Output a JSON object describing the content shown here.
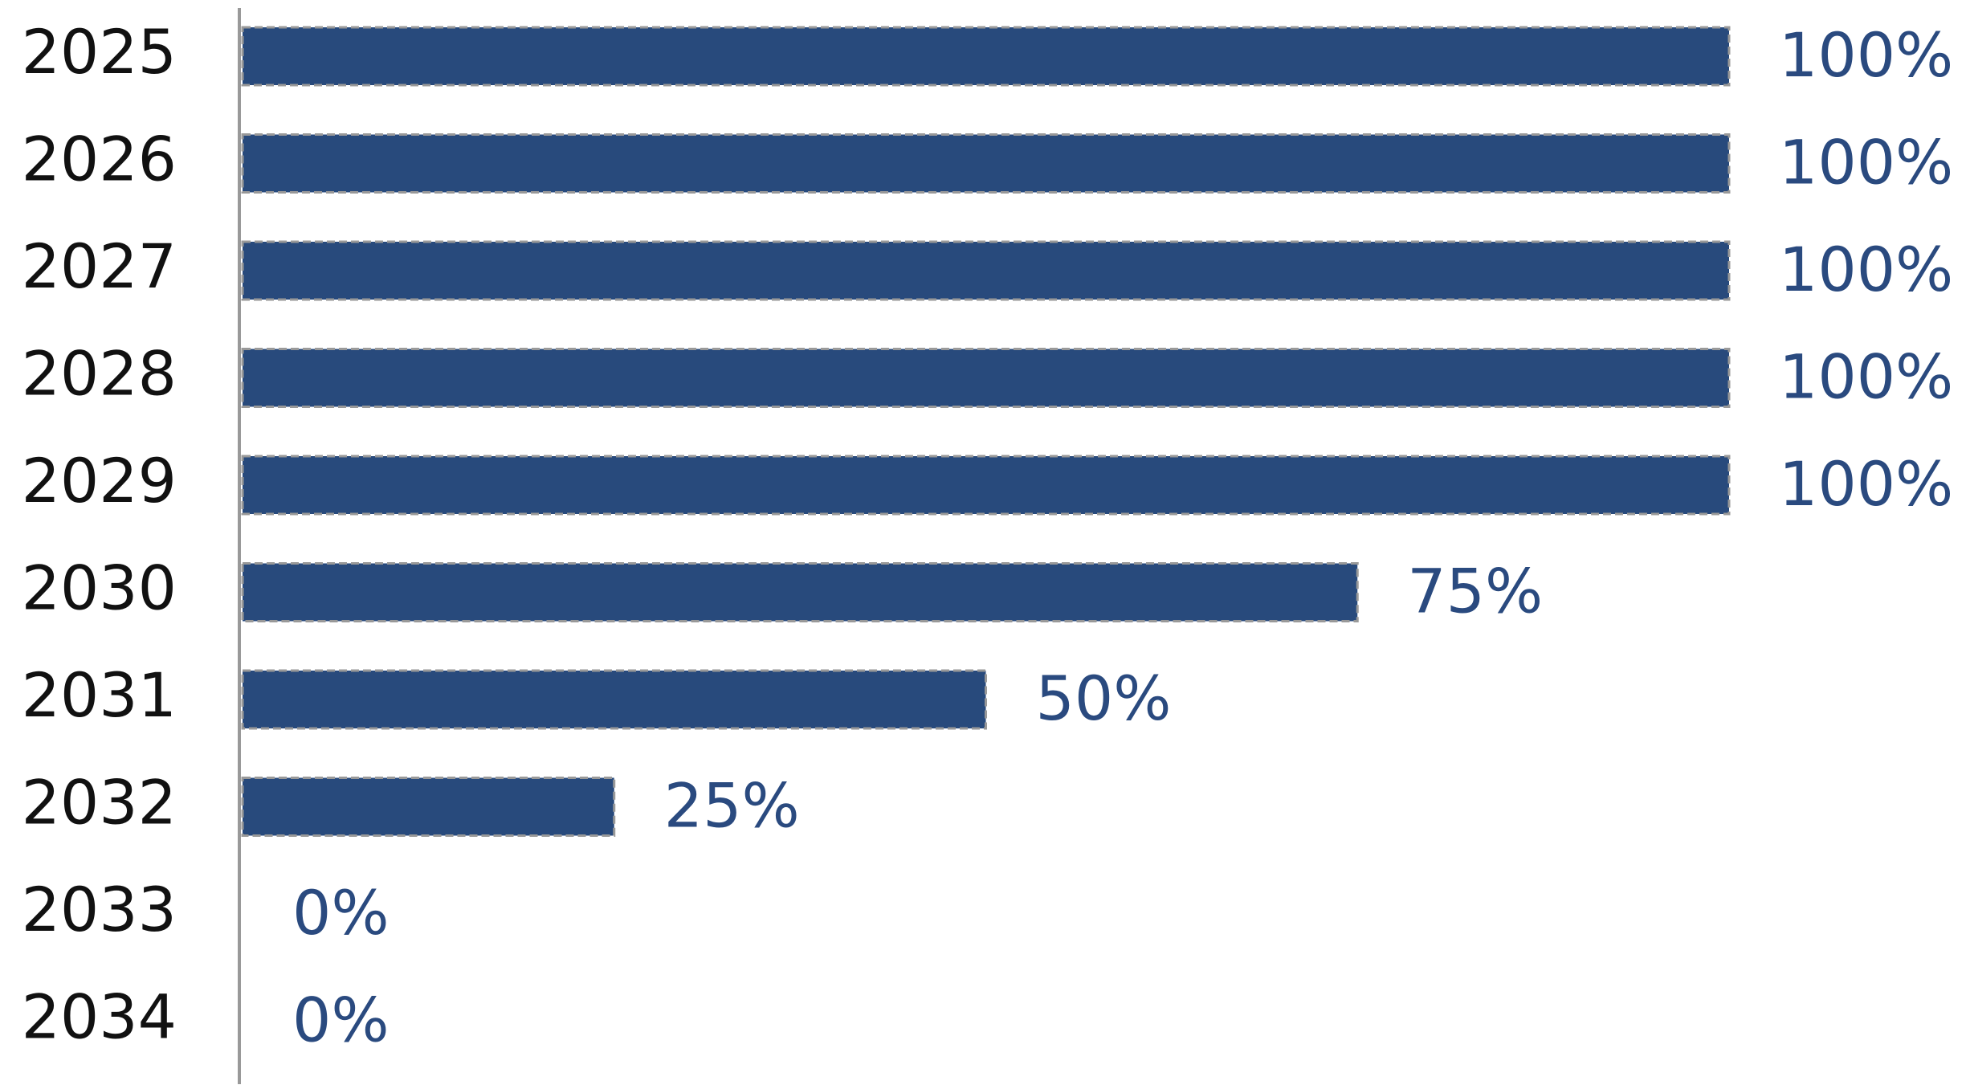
{
  "chart_data": {
    "type": "hbar",
    "categories": [
      "2025",
      "2026",
      "2027",
      "2028",
      "2029",
      "2030",
      "2031",
      "2032",
      "2033",
      "2034"
    ],
    "values": [
      100,
      100,
      100,
      100,
      100,
      75,
      50,
      25,
      0,
      0
    ],
    "value_labels": [
      "100%",
      "100%",
      "100%",
      "100%",
      "100%",
      "75%",
      "50%",
      "25%",
      "0%",
      "0%"
    ],
    "color": "#284a7c"
  }
}
